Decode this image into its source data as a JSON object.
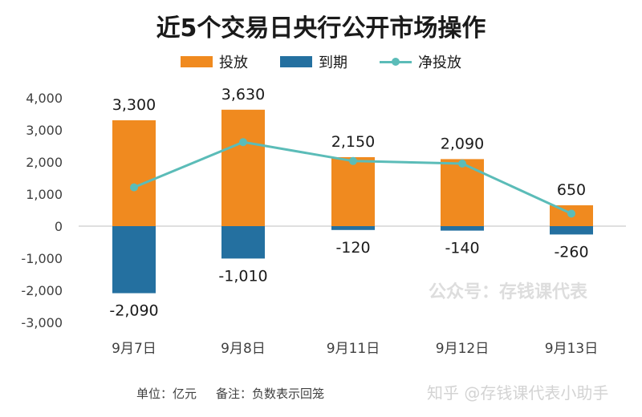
{
  "title": "近5个交易日央行公开市场操作",
  "legend": {
    "injection": "投放",
    "maturity": "到期",
    "net": "净投放"
  },
  "colors": {
    "injection": "#f08a1f",
    "maturity": "#2470a0",
    "net": "#5bbcb8",
    "zero_line": "#bfbfbf",
    "axis_text": "#404040"
  },
  "footnote": {
    "unit": "单位：亿元",
    "note": "备注：负数表示回笼"
  },
  "watermark": "公众号：存钱课代表",
  "zhihu_mark": "知乎 @存钱课代表小助手",
  "chart_data": {
    "type": "bar",
    "stacked": true,
    "categories": [
      "9月7日",
      "9月8日",
      "9月11日",
      "9月12日",
      "9月13日"
    ],
    "series": [
      {
        "name": "投放",
        "values": [
          3300,
          3630,
          2150,
          2090,
          650
        ]
      },
      {
        "name": "到期",
        "values": [
          -2090,
          -1010,
          -120,
          -140,
          -260
        ]
      },
      {
        "name": "净投放",
        "type": "line",
        "values": [
          1210,
          2620,
          2030,
          1950,
          390
        ]
      }
    ],
    "injection_labels": [
      "3,300",
      "3,630",
      "2,150",
      "2,090",
      "650"
    ],
    "maturity_labels": [
      "-2,090",
      "-1,010",
      "-120",
      "-140",
      "-260"
    ],
    "yticks": [
      "4,000",
      "3,000",
      "2,000",
      "1,000",
      "0",
      "-1,000",
      "-2,000",
      "-3,000"
    ],
    "ytick_values": [
      4000,
      3000,
      2000,
      1000,
      0,
      -1000,
      -2000,
      -3000
    ],
    "ylim": [
      -3000,
      4000
    ],
    "legend_position": "top",
    "grid": false
  }
}
